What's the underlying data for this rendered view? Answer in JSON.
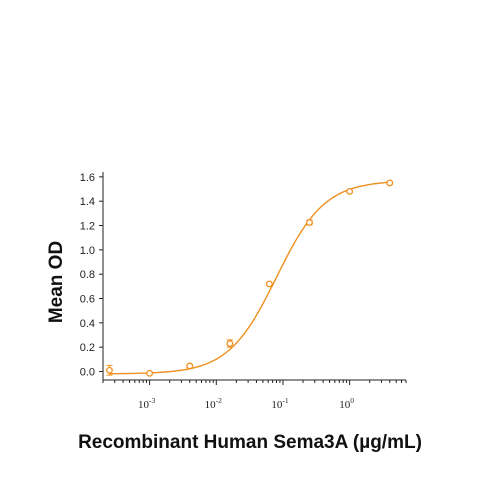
{
  "chart_data": {
    "type": "scatter",
    "xlabel": "Recombinant Human Sema3A (µg/mL)",
    "ylabel": "Mean OD",
    "x_scale": "log",
    "xlim": [
      0.0002,
      7
    ],
    "ylim": [
      -0.07,
      1.64
    ],
    "yticks": [
      "0.0",
      "0.2",
      "0.4",
      "0.6",
      "0.8",
      "1.0",
      "1.2",
      "1.4",
      "1.6"
    ],
    "xticks": [
      {
        "base": "10",
        "exp": "-3",
        "value": 0.001
      },
      {
        "base": "10",
        "exp": "-2",
        "value": 0.01
      },
      {
        "base": "10",
        "exp": "-1",
        "value": 0.1
      },
      {
        "base": "10",
        "exp": "0",
        "value": 1
      }
    ],
    "grid": false,
    "color": "#f0901e",
    "series": [
      {
        "x": [
          0.00025,
          0.001,
          0.004,
          0.016,
          0.0625,
          0.25,
          1.0,
          4.0
        ],
        "y": [
          0.01,
          -0.015,
          0.045,
          0.23,
          0.72,
          1.225,
          1.48,
          1.55
        ],
        "err": [
          0.04,
          0.01,
          0.015,
          0.03,
          0.01,
          0.02,
          0.01,
          0.01
        ]
      }
    ],
    "fit": {
      "type": "4PL",
      "bottom": -0.02,
      "top": 1.57,
      "ec50": 0.08,
      "hill": 1.2
    }
  }
}
